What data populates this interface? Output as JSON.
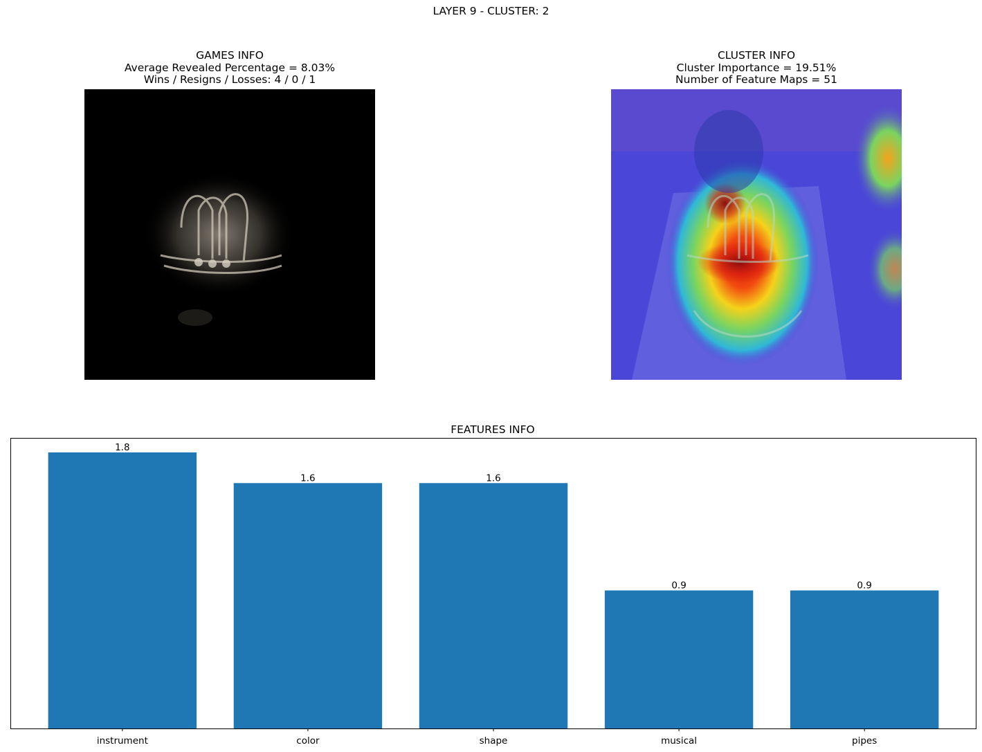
{
  "figure_title": "LAYER 9 - CLUSTER: 2",
  "games_panel": {
    "title": "GAMES INFO",
    "line1": "Average Revealed Percentage = 8.03%",
    "line2": "Wins / Resigns / Losses: 4 / 0 / 1"
  },
  "cluster_panel": {
    "title": "CLUSTER INFO",
    "line1": "Cluster Importance = 19.51%",
    "line2": "Number of Feature Maps = 51"
  },
  "chart_data": {
    "type": "bar",
    "title": "FEATURES INFO",
    "categories": [
      "instrument",
      "color",
      "shape",
      "musical",
      "pipes"
    ],
    "values": [
      1.8,
      1.6,
      1.6,
      0.9,
      0.9
    ],
    "value_labels": [
      "1.8",
      "1.6",
      "1.6",
      "0.9",
      "0.9"
    ],
    "ylim": [
      0,
      1.89
    ],
    "bar_color": "#1f77b4",
    "xlabel": "",
    "ylabel": "",
    "grid": false,
    "y_ticks_visible": false
  }
}
